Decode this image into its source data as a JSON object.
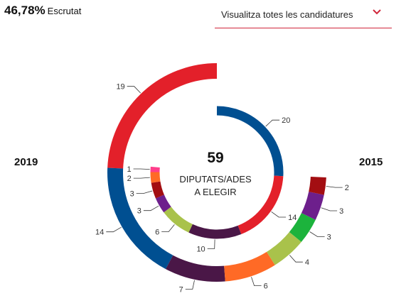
{
  "scrutiny": {
    "percent": "46,78%",
    "label": "Escrutat"
  },
  "selector": {
    "label": "Visualitza totes les candidatures",
    "icon": "chevron-down-icon",
    "accent": "#d0263a"
  },
  "chart_data": {
    "type": "donut",
    "center": {
      "value": "59",
      "line1": "DIPUTATS/ADES",
      "line2": "A ELEGIR"
    },
    "rings": [
      {
        "year": "2019",
        "total_seats": 59,
        "segments": [
          {
            "value": 19,
            "label": "19",
            "color": "#e3202a"
          },
          {
            "value": 14,
            "label": "14",
            "color": "#004f91"
          },
          {
            "value": 7,
            "label": "7",
            "color": "#4a1747"
          },
          {
            "value": 6,
            "label": "6",
            "color": "#ff6a26"
          },
          {
            "value": 4,
            "label": "4",
            "color": "#a9c24b"
          },
          {
            "value": 3,
            "label": "3",
            "color": "#1cb33c"
          },
          {
            "value": 3,
            "label": "3",
            "color": "#6d1f8c"
          },
          {
            "value": 2,
            "label": "2",
            "color": "#a30e12"
          }
        ]
      },
      {
        "year": "2015",
        "total_seats": 59,
        "segments": [
          {
            "value": 20,
            "label": "20",
            "color": "#004f91"
          },
          {
            "value": 14,
            "label": "14",
            "color": "#e3202a"
          },
          {
            "value": 10,
            "label": "10",
            "color": "#4a1747"
          },
          {
            "value": 6,
            "label": "6",
            "color": "#a9c24b"
          },
          {
            "value": 3,
            "label": "3",
            "color": "#6d1f8c"
          },
          {
            "value": 3,
            "label": "3",
            "color": "#a30e12"
          },
          {
            "value": 2,
            "label": "2",
            "color": "#ff6a26"
          },
          {
            "value": 1,
            "label": "1",
            "color": "#ff3d8b"
          }
        ]
      }
    ]
  }
}
